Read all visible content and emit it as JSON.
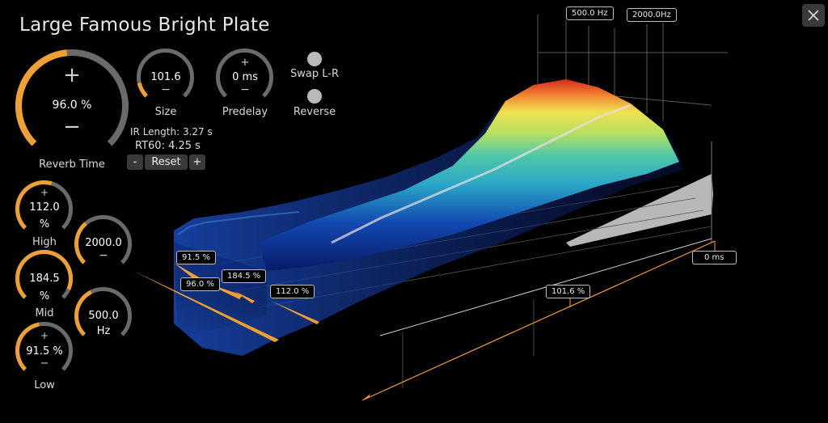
{
  "title": "Large Famous Bright Plate",
  "close_icon": "close-icon",
  "colors": {
    "accent": "#f0a030",
    "track": "#6a6a6a",
    "panel": "#3a3a3a"
  },
  "knobs": {
    "reverb_time": {
      "value": "96.0 %",
      "label": "Reverb Time",
      "plus": "+",
      "minus": "−",
      "fraction": 0.48
    },
    "size": {
      "value": "101.6",
      "label": "Size",
      "minus": "−",
      "fraction": 0.12
    },
    "predelay": {
      "value": "0 ms",
      "label": "Predelay",
      "plus": "+",
      "minus": "−",
      "fraction": 0.0
    },
    "high": {
      "value": "112.0",
      "unit": "%",
      "label": "High",
      "plus": "+",
      "fraction": 0.56
    },
    "high_freq": {
      "value": "2000.0",
      "minus": "−",
      "fraction": 0.35
    },
    "mid": {
      "value": "184.5",
      "unit": "%",
      "label": "Mid",
      "fraction": 0.92
    },
    "mid_freq": {
      "value": "500.0",
      "unit": "Hz",
      "fraction": 0.4
    },
    "low": {
      "value": "91.5 %",
      "label": "Low",
      "plus": "+",
      "minus": "−",
      "fraction": 0.46
    }
  },
  "info": {
    "ir_length": "IR Length: 3.27 s",
    "rt60": "RT60: 4.25 s"
  },
  "buttons": {
    "minus": "-",
    "reset": "Reset",
    "plus": "+"
  },
  "toggles": {
    "swap": "Swap L-R",
    "reverse": "Reverse"
  },
  "viz_tags": {
    "freq_mid": "500.0 Hz",
    "freq_high": "2000.0Hz",
    "time_zero": "0 ms",
    "size": "101.6 %",
    "low": "91.5 %",
    "reverb": "96.0 %",
    "mid": "184.5 %",
    "high": "112.0 %"
  }
}
